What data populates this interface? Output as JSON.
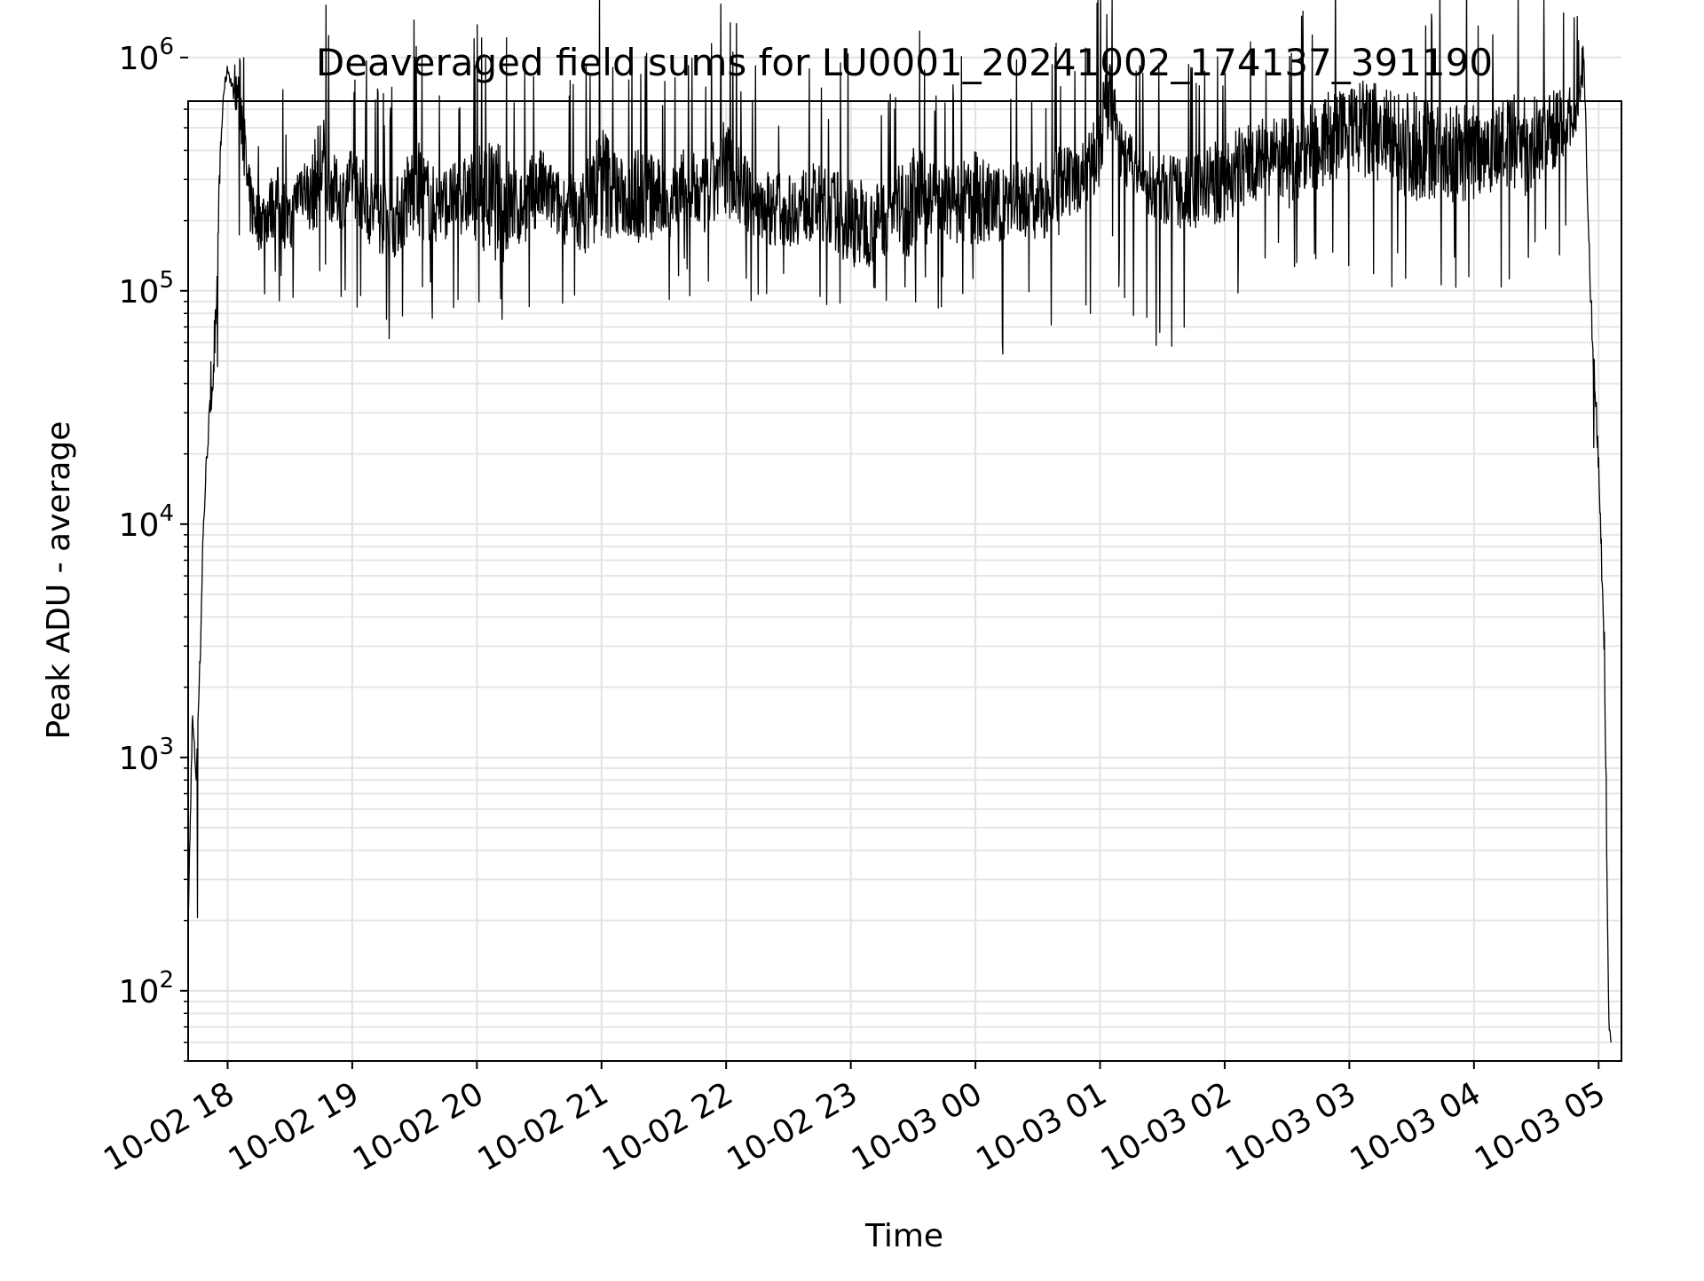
{
  "chart_data": {
    "type": "line",
    "title": "Deaveraged field sums for LU0001_20241002_174137_391190",
    "xlabel": "Time",
    "ylabel": "Peak ADU - average",
    "yscale": "log",
    "xlim": [
      "2024-10-02 17:41",
      "2024-10-03 05:11"
    ],
    "ylim": [
      50,
      650000
    ],
    "grid": true,
    "grid_which": "both",
    "line_color": "#000000",
    "x_ticks": [
      {
        "value": "2024-10-02 18:00",
        "label": "10-02 18"
      },
      {
        "value": "2024-10-02 19:00",
        "label": "10-02 19"
      },
      {
        "value": "2024-10-02 20:00",
        "label": "10-02 20"
      },
      {
        "value": "2024-10-02 21:00",
        "label": "10-02 21"
      },
      {
        "value": "2024-10-02 22:00",
        "label": "10-02 22"
      },
      {
        "value": "2024-10-02 23:00",
        "label": "10-02 23"
      },
      {
        "value": "2024-10-03 00:00",
        "label": "10-03 00"
      },
      {
        "value": "2024-10-03 01:00",
        "label": "10-03 01"
      },
      {
        "value": "2024-10-03 02:00",
        "label": "10-03 02"
      },
      {
        "value": "2024-10-03 03:00",
        "label": "10-03 03"
      },
      {
        "value": "2024-10-03 04:00",
        "label": "10-03 04"
      },
      {
        "value": "2024-10-03 05:00",
        "label": "10-03 05"
      }
    ],
    "y_ticks": [
      {
        "value": 100,
        "base": "10",
        "exp": "2"
      },
      {
        "value": 1000,
        "base": "10",
        "exp": "3"
      },
      {
        "value": 10000,
        "base": "10",
        "exp": "4"
      },
      {
        "value": 100000,
        "base": "10",
        "exp": "5"
      },
      {
        "value": 1000000,
        "base": "10",
        "exp": "6"
      }
    ],
    "series": [
      {
        "color": "#000000",
        "x": [
          "2024-10-02 17:41",
          "2024-10-02 17:42",
          "2024-10-02 17:43",
          "2024-10-02 17:44",
          "2024-10-02 17:45",
          "2024-10-02 17:46",
          "2024-10-02 17:47",
          "2024-10-02 17:48",
          "2024-10-02 17:50",
          "2024-10-02 17:52",
          "2024-10-02 17:54",
          "2024-10-02 17:56",
          "2024-10-02 17:58",
          "2024-10-02 18:00",
          "2024-10-02 18:03",
          "2024-10-02 18:06",
          "2024-10-02 18:10",
          "2024-10-02 18:15",
          "2024-10-02 18:20",
          "2024-10-02 18:25",
          "2024-10-02 18:30",
          "2024-10-02 18:35",
          "2024-10-02 18:40",
          "2024-10-02 18:45",
          "2024-10-02 18:50",
          "2024-10-02 18:55",
          "2024-10-02 19:00",
          "2024-10-02 19:10",
          "2024-10-02 19:20",
          "2024-10-02 19:30",
          "2024-10-02 19:40",
          "2024-10-02 19:50",
          "2024-10-02 20:00",
          "2024-10-02 20:10",
          "2024-10-02 20:20",
          "2024-10-02 20:30",
          "2024-10-02 20:40",
          "2024-10-02 20:50",
          "2024-10-02 21:00",
          "2024-10-02 21:10",
          "2024-10-02 21:20",
          "2024-10-02 21:30",
          "2024-10-02 21:40",
          "2024-10-02 21:50",
          "2024-10-02 22:00",
          "2024-10-02 22:10",
          "2024-10-02 22:20",
          "2024-10-02 22:30",
          "2024-10-02 22:40",
          "2024-10-02 22:50",
          "2024-10-02 23:00",
          "2024-10-02 23:10",
          "2024-10-02 23:20",
          "2024-10-02 23:30",
          "2024-10-02 23:40",
          "2024-10-02 23:50",
          "2024-10-03 00:00",
          "2024-10-03 00:10",
          "2024-10-03 00:20",
          "2024-10-03 00:30",
          "2024-10-03 00:40",
          "2024-10-03 00:50",
          "2024-10-03 01:00",
          "2024-10-03 01:05",
          "2024-10-03 01:10",
          "2024-10-03 01:20",
          "2024-10-03 01:30",
          "2024-10-03 01:40",
          "2024-10-03 01:50",
          "2024-10-03 02:00",
          "2024-10-03 02:10",
          "2024-10-03 02:20",
          "2024-10-03 02:30",
          "2024-10-03 02:40",
          "2024-10-03 02:50",
          "2024-10-03 03:00",
          "2024-10-03 03:10",
          "2024-10-03 03:20",
          "2024-10-03 03:30",
          "2024-10-03 03:40",
          "2024-10-03 03:50",
          "2024-10-03 04:00",
          "2024-10-03 04:10",
          "2024-10-03 04:20",
          "2024-10-03 04:30",
          "2024-10-03 04:40",
          "2024-10-03 04:50",
          "2024-10-03 04:53",
          "2024-10-03 04:55",
          "2024-10-03 04:57",
          "2024-10-03 04:59",
          "2024-10-03 05:01",
          "2024-10-03 05:03",
          "2024-10-03 05:04",
          "2024-10-03 05:05",
          "2024-10-03 05:06"
        ],
        "y": [
          200,
          500,
          1500,
          1100,
          800,
          1800,
          3000,
          8000,
          20000,
          35000,
          50000,
          300000,
          700000,
          900000,
          700000,
          700000,
          250000,
          200000,
          220000,
          250000,
          180000,
          300000,
          250000,
          350000,
          280000,
          250000,
          300000,
          220000,
          200000,
          280000,
          230000,
          250000,
          260000,
          240000,
          220000,
          280000,
          230000,
          210000,
          300000,
          250000,
          260000,
          240000,
          270000,
          250000,
          350000,
          250000,
          230000,
          220000,
          240000,
          230000,
          200000,
          190000,
          220000,
          240000,
          250000,
          230000,
          250000,
          230000,
          250000,
          240000,
          260000,
          300000,
          450000,
          700000,
          400000,
          300000,
          270000,
          260000,
          280000,
          300000,
          350000,
          380000,
          350000,
          400000,
          450000,
          500000,
          480000,
          450000,
          420000,
          400000,
          380000,
          400000,
          420000,
          400000,
          450000,
          500000,
          600000,
          900000,
          200000,
          60000,
          30000,
          10000,
          2000,
          300,
          70,
          60
        ],
        "noise_min": [
          50,
          50,
          100,
          100,
          100,
          100,
          100,
          100,
          100,
          10000,
          10000,
          130000,
          100000,
          500000,
          120000,
          90000,
          90000,
          90000,
          80000,
          80000,
          60000,
          80000,
          90000,
          100000,
          80000,
          80000,
          80000,
          60000,
          50000,
          90000,
          70000,
          80000,
          80000,
          70000,
          60000,
          90000,
          70000,
          60000,
          90000,
          60000,
          60000,
          80000,
          90000,
          90000,
          110000,
          80000,
          80000,
          80000,
          80000,
          80000,
          70000,
          70000,
          80000,
          80000,
          80000,
          80000,
          70000,
          50000,
          50000,
          60000,
          70000,
          70000,
          90000,
          200000,
          80000,
          50000,
          50000,
          60000,
          70000,
          90000,
          100000,
          110000,
          90000,
          90000,
          100000,
          100000,
          120000,
          100000,
          90000,
          90000,
          90000,
          90000,
          100000,
          100000,
          120000,
          130000,
          170000,
          500000,
          30000,
          20000,
          10000,
          1000,
          300,
          100,
          60,
          60
        ],
        "noise_max": [
          300,
          900,
          2000,
          1500,
          1200,
          2500,
          4000,
          12000,
          30000,
          60000,
          80000,
          500000,
          900000,
          1050000,
          900000,
          2800000,
          900000,
          600000,
          700000,
          900000,
          600000,
          1000000,
          900000,
          3300000,
          1000000,
          800000,
          1000000,
          1000000,
          800000,
          1800000,
          900000,
          900000,
          1400000,
          2800000,
          900000,
          1200000,
          800000,
          900000,
          2900000,
          1000000,
          1800000,
          900000,
          1200000,
          1000000,
          2200000,
          1000000,
          900000,
          800000,
          1000000,
          900000,
          1200000,
          800000,
          900000,
          1800000,
          1000000,
          900000,
          1400000,
          900000,
          1000000,
          900000,
          1400000,
          900000,
          2900000,
          2300000,
          1200000,
          900000,
          1000000,
          900000,
          1200000,
          1400000,
          1700000,
          1500000,
          1800000,
          2000000,
          2700000,
          2200000,
          3700000,
          2500000,
          3200000,
          2300000,
          2100000,
          2800000,
          2000000,
          3100000,
          2200000,
          2000000,
          1500000,
          1300000,
          500000,
          100000,
          60000,
          20000,
          3000,
          500,
          80,
          70
        ]
      }
    ]
  }
}
